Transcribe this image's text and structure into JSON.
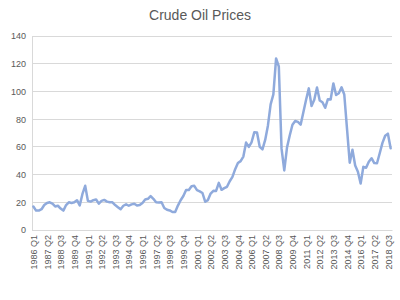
{
  "chart_data": {
    "type": "line",
    "title": "Crude Oil Prices",
    "categories": [
      "1986 Q1",
      null,
      null,
      null,
      null,
      "1987 Q2",
      null,
      null,
      null,
      null,
      "1988 Q3",
      null,
      null,
      null,
      null,
      "1989 Q4",
      null,
      null,
      null,
      null,
      "1991 Q1",
      null,
      null,
      null,
      null,
      "1992 Q2",
      null,
      null,
      null,
      null,
      "1993 Q3",
      null,
      null,
      null,
      null,
      "1994 Q4",
      null,
      null,
      null,
      null,
      "1996 Q1",
      null,
      null,
      null,
      null,
      "1997 Q2",
      null,
      null,
      null,
      null,
      "1998 Q3",
      null,
      null,
      null,
      null,
      "1999 Q4",
      null,
      null,
      null,
      null,
      "2001 Q1",
      null,
      null,
      null,
      null,
      "2002 Q2",
      null,
      null,
      null,
      null,
      "2003 Q3",
      null,
      null,
      null,
      null,
      "2004 Q4",
      null,
      null,
      null,
      null,
      "2006 Q1",
      null,
      null,
      null,
      null,
      "2007 Q2",
      null,
      null,
      null,
      null,
      "2008 Q3",
      null,
      null,
      null,
      null,
      "2009 Q4",
      null,
      null,
      null,
      null,
      "2011 Q1",
      null,
      null,
      null,
      null,
      "2012 Q2",
      null,
      null,
      null,
      null,
      "2013 Q3",
      null,
      null,
      null,
      null,
      "2014 Q4",
      null,
      null,
      null,
      null,
      "2016 Q1",
      null,
      null,
      null,
      null,
      "2017 Q2",
      null,
      null,
      null,
      null,
      "2018 Q3",
      null
    ],
    "values": [
      17,
      14,
      14,
      15,
      18,
      19.5,
      20,
      19,
      17,
      17.5,
      15.5,
      14,
      18,
      20,
      19.5,
      20,
      21.5,
      17.8,
      26,
      31.9,
      21,
      20.5,
      21.5,
      22,
      19,
      21,
      21.7,
      20.5,
      20,
      20,
      18,
      16.5,
      15,
      17.5,
      18.5,
      17.5,
      18.5,
      19,
      17.7,
      18,
      19.5,
      22,
      22.5,
      24.5,
      22.5,
      20,
      19.8,
      20,
      15.9,
      14.6,
      14.1,
      13,
      13,
      17.6,
      21.5,
      24.5,
      28.8,
      28.8,
      31.6,
      31.9,
      28.8,
      27.9,
      26.7,
      20.4,
      21.6,
      26.3,
      28.3,
      28.2,
      34,
      29,
      30.2,
      31.2,
      35.2,
      38.3,
      43.9,
      48.3,
      49.7,
      53,
      63.1,
      60,
      63.3,
      70.5,
      70.4,
      60,
      58.2,
      65,
      75.3,
      90.7,
      97.9,
      123.8,
      118,
      58.7,
      43,
      59.5,
      68.2,
      76,
      78.7,
      78,
      76,
      85,
      94,
      102.2,
      89.5,
      94,
      102.9,
      93.5,
      92.2,
      88.2,
      94.4,
      94.2,
      105.8,
      97.4,
      98.7,
      103,
      97.8,
      73.2,
      48.6,
      57.9,
      46.5,
      42,
      33.5,
      45.6,
      44.9,
      49.3,
      51.8,
      48.3,
      48.2,
      55.4,
      62.9,
      68,
      69.5,
      59
    ],
    "color": "#8faadc",
    "ylim": [
      0,
      140
    ],
    "yticks": [
      0,
      20,
      40,
      60,
      80,
      100,
      120,
      140
    ],
    "grid": true
  }
}
